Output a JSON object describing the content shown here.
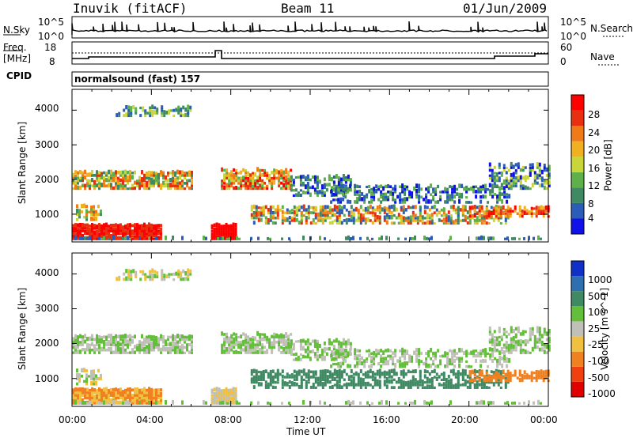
{
  "header": {
    "station": "Inuvik (fitACF)",
    "beam": "Beam 11",
    "date": "01/Jun/2009"
  },
  "top_panels": {
    "nsky_label": "N.Sky",
    "nsky_ticks": [
      "10^5",
      "10^0"
    ],
    "nsearch_label": "N.Search",
    "nsearch_ticks": [
      "10^5",
      "10^0"
    ],
    "freq_label_line1": "Freq.",
    "freq_label_line2": "[MHz]",
    "freq_ticks": [
      "18",
      "8"
    ],
    "nave_label": "Nave",
    "nave_ticks": [
      "60",
      "0"
    ],
    "cpid_label": "CPID",
    "cpid_text": "normalsound (fast) 157"
  },
  "chart_data": [
    {
      "type": "heatmap",
      "name": "power-panel",
      "ylabel": "Slant Range [km]",
      "yticks": [
        "1000",
        "2000",
        "3000",
        "4000"
      ],
      "ylim": [
        200,
        4600
      ],
      "xticks": [
        "00:00",
        "04:00",
        "08:00",
        "12:00",
        "16:00",
        "20:00",
        "00:00"
      ],
      "colorbar": {
        "label": "Power [dB]",
        "levels": [
          "4",
          "8",
          "12",
          "16",
          "20",
          "24",
          "28"
        ],
        "colors": [
          "#1010e8",
          "#2a5cb8",
          "#3f8a63",
          "#5fb04a",
          "#c8d63a",
          "#f0b020",
          "#f07a18",
          "#e83010",
          "#ff0000"
        ]
      }
    },
    {
      "type": "heatmap",
      "name": "velocity-panel",
      "ylabel": "Slant Range [km]",
      "yticks": [
        "1000",
        "2000",
        "3000",
        "4000"
      ],
      "ylim": [
        200,
        4600
      ],
      "xticks": [
        "00:00",
        "04:00",
        "08:00",
        "12:00",
        "16:00",
        "20:00",
        "00:00"
      ],
      "colorbar": {
        "label": "Velocity [m s^-1]",
        "levels": [
          "1000",
          "500",
          "100",
          "25",
          "-25",
          "-100",
          "-500",
          "-1000"
        ],
        "colors": [
          "#1030c8",
          "#2e6fb0",
          "#3f8a63",
          "#63bf3a",
          "#c0c0b8",
          "#f0c040",
          "#f08020",
          "#f04010",
          "#e00000"
        ]
      }
    }
  ],
  "xlabel": "Time UT"
}
